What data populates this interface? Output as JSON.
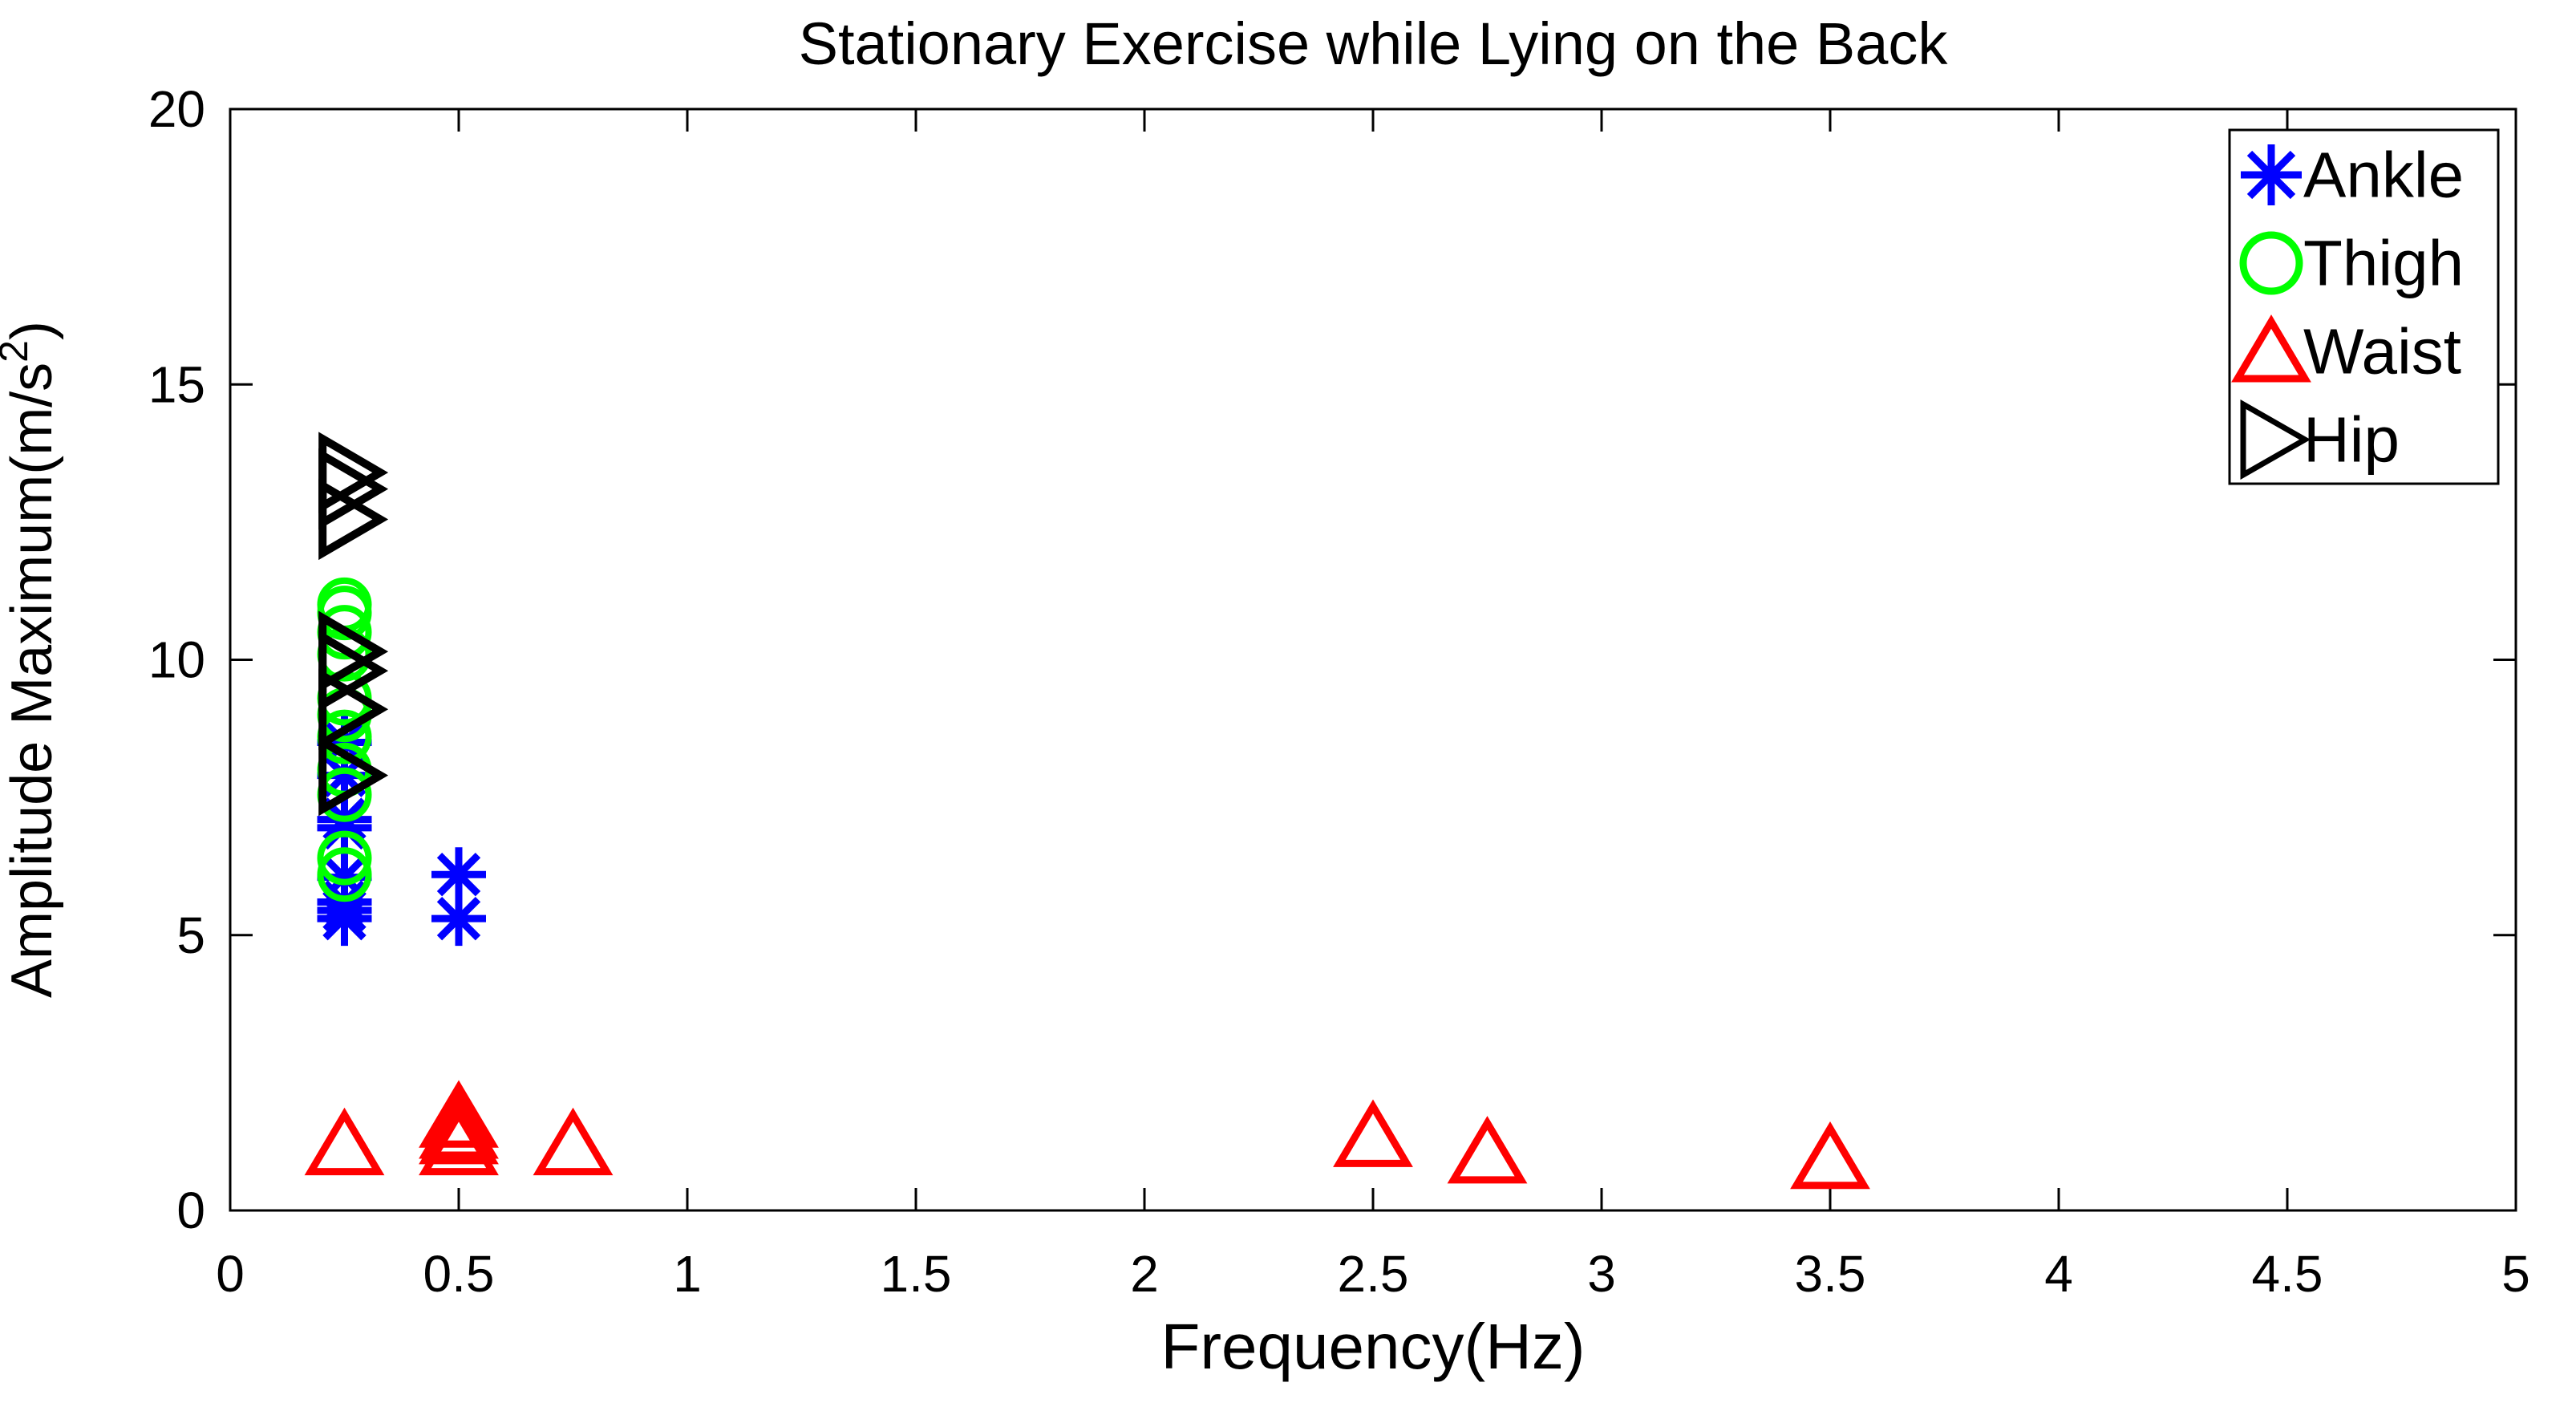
{
  "figure": {
    "background": "#ffffff",
    "frame_color": "#000000"
  },
  "chart_data": {
    "type": "scatter",
    "title": "Stationary Exercise while Lying on the Back",
    "xlabel": "Frequency(Hz)",
    "ylabel": "Amplitude Maximum(m/s²)",
    "ylabel_parts": {
      "main": "Amplitude Maximum(m/s",
      "sup": "2",
      "end": ")"
    },
    "xlim": [
      0,
      5
    ],
    "ylim": [
      0,
      20
    ],
    "x_ticks": [
      0,
      0.5,
      1,
      1.5,
      2,
      2.5,
      3,
      3.5,
      4,
      4.5,
      5
    ],
    "x_tick_labels": [
      "0",
      "0.5",
      "1",
      "1.5",
      "2",
      "2.5",
      "3",
      "3.5",
      "4",
      "4.5",
      "5"
    ],
    "y_ticks": [
      0,
      5,
      10,
      15,
      20
    ],
    "y_tick_labels": [
      "0",
      "5",
      "10",
      "15",
      "20"
    ],
    "grid": false,
    "legend_position": "top-right",
    "series": [
      {
        "name": "Ankle",
        "marker": "asterisk",
        "color": "#0000ff",
        "points": [
          [
            0.25,
            8.5
          ],
          [
            0.25,
            7.9
          ],
          [
            0.25,
            7.1
          ],
          [
            0.25,
            6.95
          ],
          [
            0.25,
            6.05
          ],
          [
            0.25,
            5.6
          ],
          [
            0.25,
            5.45
          ],
          [
            0.25,
            5.3
          ],
          [
            0.5,
            6.1
          ],
          [
            0.5,
            5.3
          ]
        ]
      },
      {
        "name": "Thigh",
        "marker": "circle",
        "color": "#00ff00",
        "points": [
          [
            0.25,
            11.0
          ],
          [
            0.25,
            10.85
          ],
          [
            0.25,
            10.5
          ],
          [
            0.25,
            10.1
          ],
          [
            0.25,
            9.3
          ],
          [
            0.25,
            9.0
          ],
          [
            0.25,
            8.6
          ],
          [
            0.25,
            8.0
          ],
          [
            0.25,
            7.55
          ],
          [
            0.25,
            6.4
          ],
          [
            0.25,
            6.1
          ]
        ]
      },
      {
        "name": "Waist",
        "marker": "triangle-up",
        "color": "#ff0000",
        "points": [
          [
            0.25,
            1.2
          ],
          [
            0.5,
            1.7
          ],
          [
            0.5,
            1.5
          ],
          [
            0.5,
            1.4
          ],
          [
            0.5,
            1.2
          ],
          [
            0.75,
            1.2
          ],
          [
            2.5,
            1.35
          ],
          [
            2.75,
            1.05
          ],
          [
            3.5,
            0.95
          ]
        ]
      },
      {
        "name": "Hip",
        "marker": "triangle-right",
        "color": "#000000",
        "points": [
          [
            0.26,
            13.4
          ],
          [
            0.26,
            13.1
          ],
          [
            0.26,
            12.55
          ],
          [
            0.26,
            10.15
          ],
          [
            0.26,
            9.8
          ],
          [
            0.26,
            9.1
          ],
          [
            0.26,
            7.9
          ]
        ]
      }
    ]
  }
}
